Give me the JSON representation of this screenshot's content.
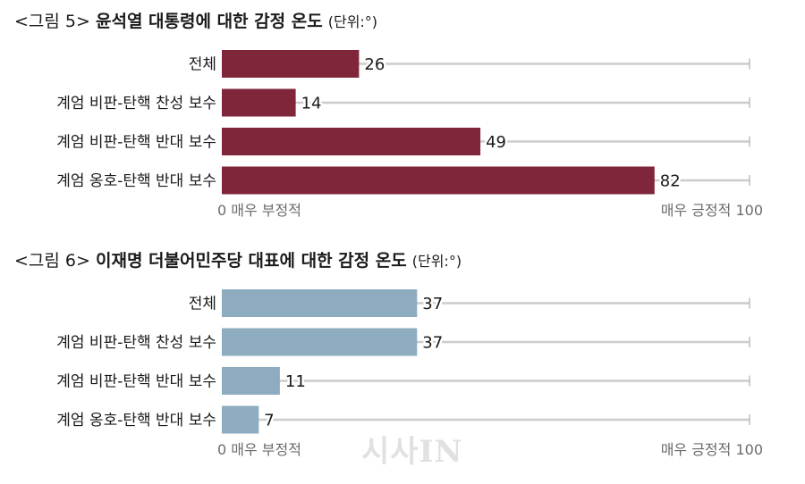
{
  "chart_data": [
    {
      "type": "bar",
      "orientation": "horizontal",
      "title_prefix": "<그림 5>",
      "title": "윤석열 대통령에 대한 감정 온도",
      "title_unit": "(단위:°)",
      "categories": [
        "전체",
        "계엄 비판-탄핵 찬성 보수",
        "계엄 비판-탄핵 반대 보수",
        "계엄 옹호-탄핵 반대 보수"
      ],
      "values": [
        26,
        14,
        49,
        82
      ],
      "xlim": [
        0,
        100
      ],
      "axis_min_label": "0 매우 부정적",
      "axis_max_label": "매우 긍정적 100",
      "bar_color": "#80263b",
      "track_color": "#cccccc"
    },
    {
      "type": "bar",
      "orientation": "horizontal",
      "title_prefix": "<그림 6>",
      "title": "이재명 더불어민주당 대표에 대한 감정 온도",
      "title_unit": "(단위:°)",
      "categories": [
        "전체",
        "계엄 비판-탄핵 찬성 보수",
        "계엄 비판-탄핵 반대 보수",
        "계엄 옹호-탄핵 반대 보수"
      ],
      "values": [
        37,
        37,
        11,
        7
      ],
      "xlim": [
        0,
        100
      ],
      "axis_min_label": "0 매우 부정적",
      "axis_max_label": "매우 긍정적 100",
      "bar_color": "#8eacc0",
      "track_color": "#cccccc"
    }
  ],
  "watermark": "시사IN"
}
